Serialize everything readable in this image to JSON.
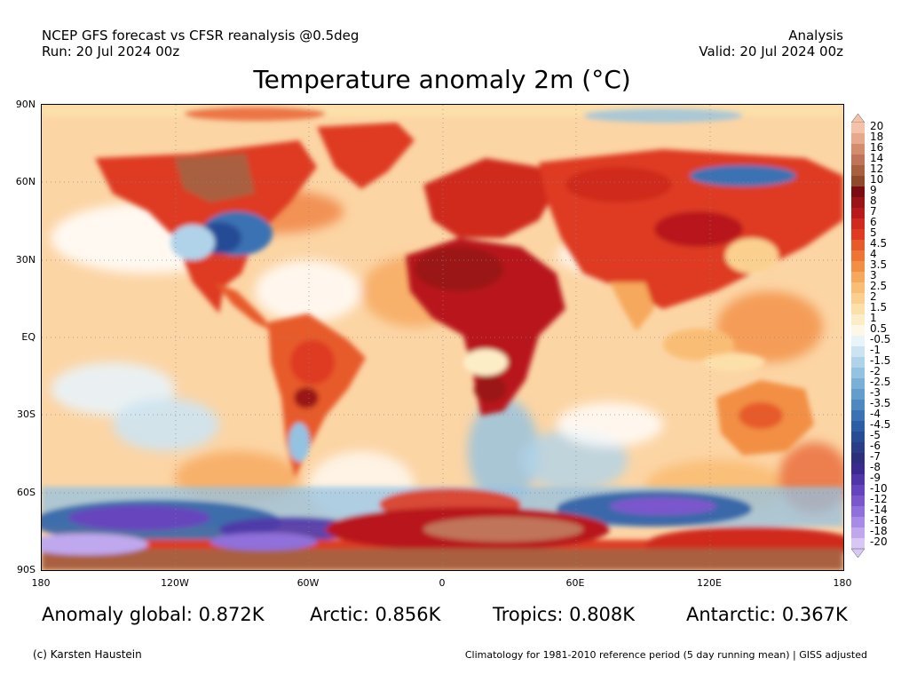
{
  "header": {
    "line1_left": "NCEP GFS forecast vs CFSR reanalysis @0.5deg",
    "line2_left": "Run: 20 Jul 2024 00z",
    "line1_right": "Analysis",
    "line2_right": "Valid: 20 Jul 2024 00z"
  },
  "title": "Temperature anomaly 2m (°C)",
  "axes": {
    "lat_labels": [
      "90N",
      "60N",
      "30N",
      "EQ",
      "30S",
      "60S",
      "90S"
    ],
    "lon_labels": [
      "180",
      "120W",
      "60W",
      "0",
      "60E",
      "120E",
      "180"
    ]
  },
  "colorbar": {
    "labels": [
      "20",
      "18",
      "16",
      "14",
      "12",
      "10",
      "9",
      "8",
      "7",
      "6",
      "5",
      "4.5",
      "4",
      "3.5",
      "3",
      "2.5",
      "2",
      "1.5",
      "1",
      "0.5",
      "-0.5",
      "-1",
      "-1.5",
      "-2",
      "-2.5",
      "-3",
      "-3.5",
      "-4",
      "-4.5",
      "-5",
      "-6",
      "-7",
      "-8",
      "-9",
      "-10",
      "-12",
      "-14",
      "-16",
      "-18",
      "-20"
    ],
    "colors": [
      "#f3c2a8",
      "#e6a98b",
      "#d38d6d",
      "#c0755a",
      "#a9603f",
      "#8f4a2b",
      "#7a0d12",
      "#9b1418",
      "#b8191b",
      "#cf2a1d",
      "#de3b22",
      "#e75a2a",
      "#ee7535",
      "#f28f45",
      "#f6a85c",
      "#f9bd74",
      "#fbd08f",
      "#fce0aa",
      "#fdedc7",
      "#fef7e6",
      "#e9f3fa",
      "#cce4f2",
      "#b0d3ea",
      "#94c2e1",
      "#7ab0d6",
      "#629dcb",
      "#4d88c0",
      "#3a72b3",
      "#2c5ea5",
      "#274c96",
      "#2a3d88",
      "#2d2f7b",
      "#3b2a8e",
      "#5035a8",
      "#6644bd",
      "#7b57cc",
      "#9070da",
      "#a88be6",
      "#c0a8ef",
      "#d8c6f6"
    ]
  },
  "stats": {
    "global": "Anomaly global: 0.872K",
    "arctic": "Arctic: 0.856K",
    "tropics": "Tropics: 0.808K",
    "antarctic": "Antarctic: 0.367K"
  },
  "footer": {
    "credit": "(c) Karsten Haustein",
    "note": "Climatology for 1981-2010 reference period (5 day running mean) | GISS adjusted"
  }
}
